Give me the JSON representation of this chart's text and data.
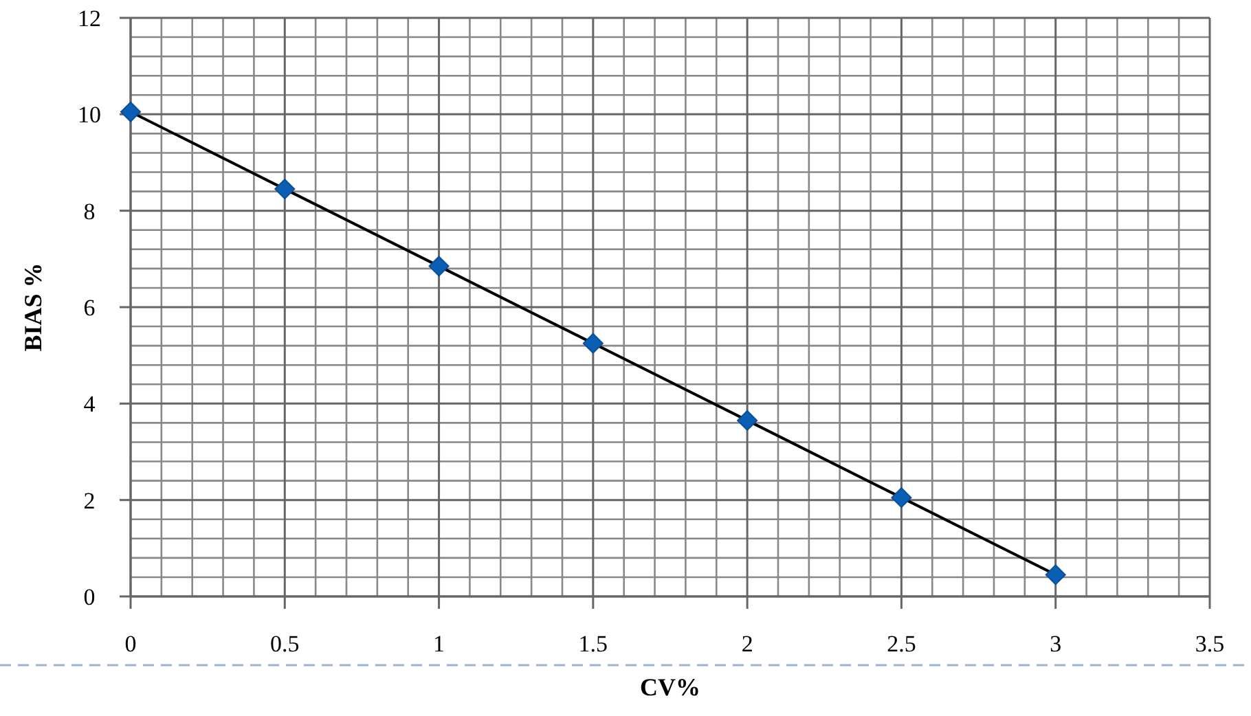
{
  "chart_data": {
    "type": "line",
    "xlabel": "CV%",
    "ylabel": "BIAS %",
    "x": [
      0,
      0.5,
      1,
      1.5,
      2,
      2.5,
      3
    ],
    "series": [
      {
        "color": "#0a5fb4",
        "values": [
          10.05,
          8.45,
          6.85,
          5.25,
          3.65,
          2.05,
          0.45
        ]
      }
    ],
    "xlim": [
      0,
      3.5
    ],
    "xticks": [
      0,
      0.5,
      1,
      1.5,
      2,
      2.5,
      3,
      3.5
    ],
    "ylim": [
      0,
      12
    ],
    "yticks": [
      0,
      2,
      4,
      6,
      8,
      10,
      12
    ],
    "grid": true,
    "marker": "diamond",
    "line_style": "solid"
  }
}
